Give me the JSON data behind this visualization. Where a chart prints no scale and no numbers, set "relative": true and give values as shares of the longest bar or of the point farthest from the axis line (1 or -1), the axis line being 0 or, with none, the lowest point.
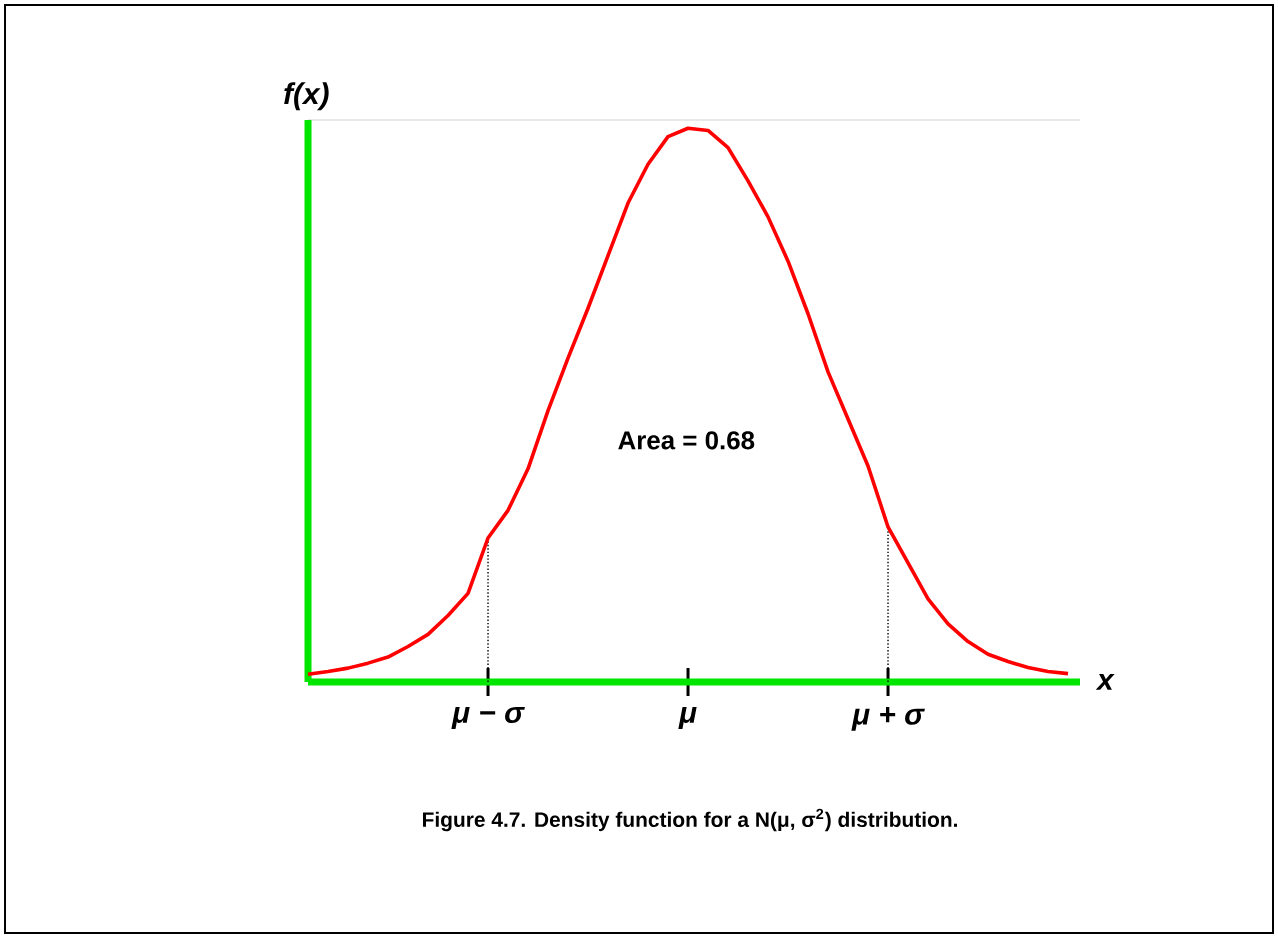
{
  "chart_data": {
    "type": "line",
    "relative": true,
    "xlabel": "x",
    "ylabel": "f(x)",
    "annotations": [
      "Area = 0.68",
      "Figure 4.7. Density function for a N(μ, σ$^{2}$) distribution."
    ],
    "grid": false,
    "marker": "none",
    "categories": [
      null,
      null,
      null,
      null,
      null,
      null,
      null,
      null,
      null,
      "μ − σ",
      null,
      null,
      null,
      null,
      null,
      null,
      null,
      null,
      null,
      "μ",
      null,
      null,
      null,
      null,
      null,
      null,
      null,
      null,
      null,
      "μ + σ",
      null,
      null,
      null,
      null,
      null,
      null,
      null,
      null,
      null
    ],
    "ref_lines": [
      {
        "axis": "x",
        "value": "μ − σ",
        "color": "#000000",
        "line_style": "dotted"
      },
      {
        "axis": "x",
        "value": "μ + σ",
        "color": "#000000",
        "line_style": "dotted"
      }
    ],
    "series": [
      {
        "color": "#ff0000",
        "line_style": "solid",
        "values": [
          0.014,
          0.019,
          0.025,
          0.034,
          0.045,
          0.064,
          0.086,
          0.12,
          0.16,
          0.26,
          0.31,
          0.385,
          0.49,
          0.585,
          0.675,
          0.77,
          0.865,
          0.935,
          0.985,
          1,
          0.996,
          0.965,
          0.905,
          0.84,
          0.76,
          0.665,
          0.56,
          0.475,
          0.39,
          0.28,
          0.215,
          0.15,
          0.105,
          0.073,
          0.05,
          0.037,
          0.026,
          0.019,
          0.015
        ]
      }
    ]
  }
}
